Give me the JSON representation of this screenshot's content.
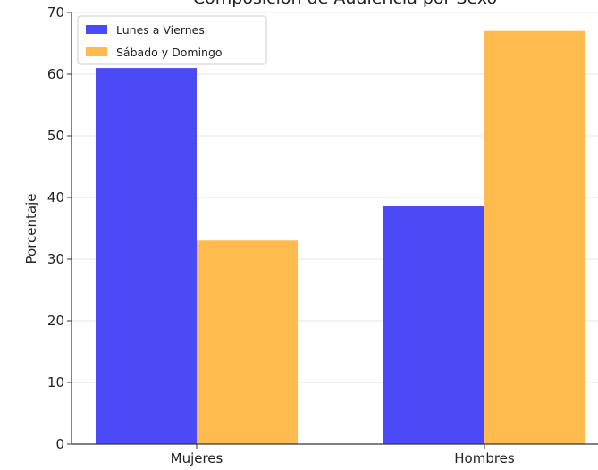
{
  "chart_data": {
    "type": "bar",
    "title": "Composición de Audiencia por Sexo",
    "xlabel": "",
    "ylabel": "Porcentaje",
    "categories": [
      "Mujeres",
      "Hombres"
    ],
    "series": [
      {
        "name": "Lunes a Viernes",
        "values": [
          61,
          38.7
        ],
        "color": "#4b4bf5"
      },
      {
        "name": "Sábado y Domingo",
        "values": [
          33,
          67
        ],
        "color": "#ffbb4d"
      }
    ],
    "ylim": [
      0,
      70
    ],
    "yticks": [
      0,
      10,
      20,
      30,
      40,
      50,
      60,
      70
    ],
    "grid": true,
    "legend_position": "top-left"
  }
}
